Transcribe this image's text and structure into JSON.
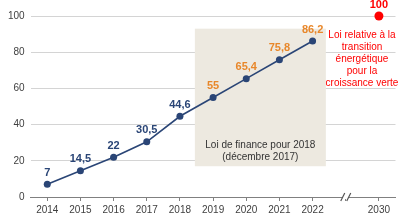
{
  "chart_data": {
    "type": "line",
    "categories": [
      "2014",
      "2015",
      "2016",
      "2017",
      "2018",
      "2019",
      "2020",
      "2021",
      "2022",
      null,
      "2030"
    ],
    "series": [
      {
        "type": "line",
        "color": "#2a4576",
        "marker": "circle",
        "line_style": "solid",
        "values": [
          7,
          14.5,
          22,
          30.5,
          44.6,
          55,
          65.4,
          75.8,
          86.2,
          null,
          null
        ],
        "value_labels": [
          "7",
          "14,5",
          "22",
          "30,5",
          "44,6",
          "55",
          "65,4",
          "75,8",
          "86,2",
          null,
          null
        ],
        "colors": [
          "#2a4576",
          "#2a4576",
          "#2a4576",
          "#2a4576",
          "#2a4576",
          "#e8872a",
          "#e8872a",
          "#e8872a",
          "#e8872a",
          null,
          null
        ]
      },
      {
        "type": "scatter",
        "color": "#ff0000",
        "marker": "circle",
        "line_style": "none",
        "values": [
          null,
          null,
          null,
          null,
          null,
          null,
          null,
          null,
          null,
          null,
          100
        ]
      }
    ],
    "ylim": [
      0,
      100
    ],
    "yticks": [
      0,
      20,
      40,
      60,
      80,
      100
    ],
    "grid": true,
    "data_labels": true,
    "annotations": [
      {
        "text": "Loi de finance pour 2018 (décembre 2017)",
        "color": "#333333"
      },
      {
        "text": "Loi relative à la transition énergétique pour la croissance verte",
        "color": "#ff0000"
      }
    ]
  }
}
